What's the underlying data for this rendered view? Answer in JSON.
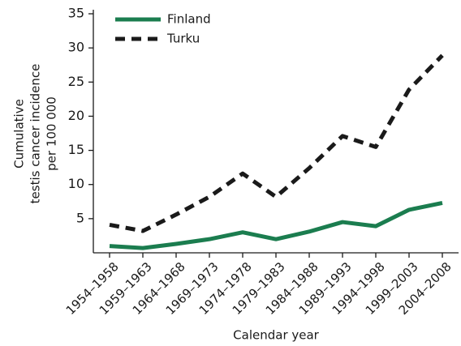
{
  "chart_data": {
    "type": "line",
    "ylabel": [
      "Cumulative",
      "testis cancer incidence",
      "per 100 000"
    ],
    "xlabel": "Calendar year",
    "categories": [
      "1954–1958",
      "1959–1963",
      "1964–1968",
      "1969–1973",
      "1974–1978",
      "1979–1983",
      "1984–1988",
      "1989–1993",
      "1994–1998",
      "1999–2003",
      "2004–2008"
    ],
    "series": [
      {
        "name": "Finland",
        "color": "#1b7d4f",
        "linestyle": "solid",
        "values": [
          1.0,
          0.7,
          1.3,
          2.0,
          3.0,
          2.0,
          3.1,
          4.5,
          3.9,
          6.3,
          7.3
        ]
      },
      {
        "name": "Turku",
        "color": "#1a1a1a",
        "linestyle": "dashed",
        "values": [
          4.1,
          3.2,
          5.6,
          8.2,
          11.6,
          8.2,
          12.4,
          17.1,
          15.5,
          23.9,
          28.9
        ]
      }
    ],
    "ylim": [
      0,
      35
    ],
    "yticks": [
      5,
      10,
      15,
      20,
      25,
      30,
      35
    ],
    "legend": "upper left"
  }
}
